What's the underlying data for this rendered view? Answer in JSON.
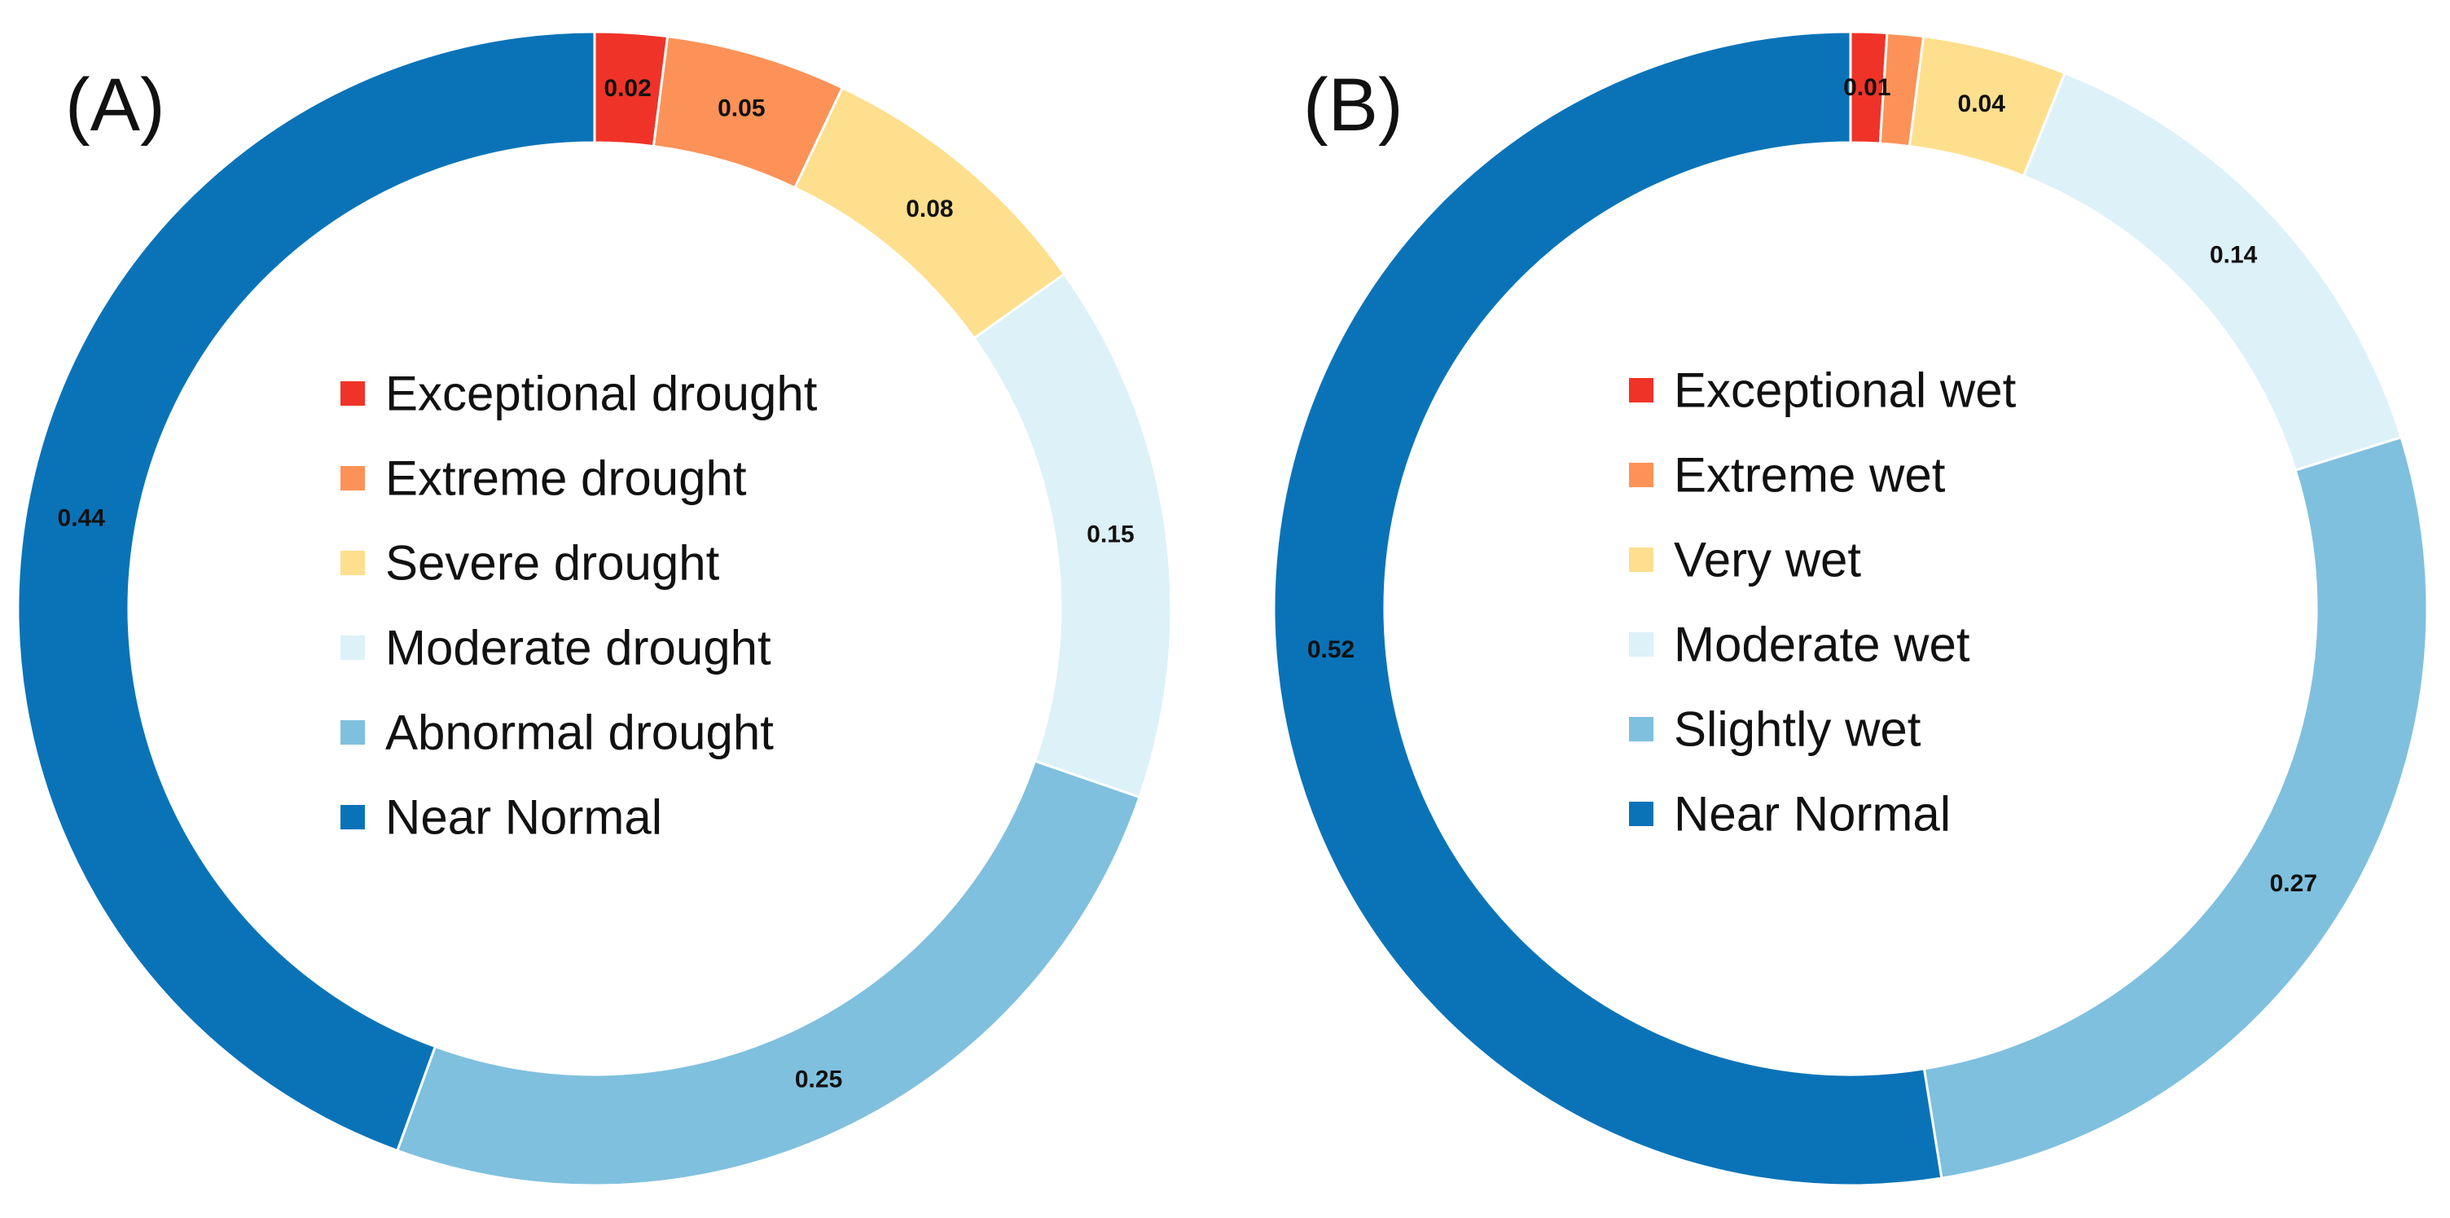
{
  "chart_data": [
    {
      "type": "pie",
      "panel_label": "(A)",
      "title": "",
      "categories": [
        "Exceptional drought",
        "Extreme drought",
        "Severe drought",
        "Moderate drought",
        "Abnormal drought",
        "Near Normal"
      ],
      "values": [
        0.02,
        0.05,
        0.08,
        0.15,
        0.25,
        0.44
      ],
      "data_labels": [
        "0.02",
        "0.05",
        "0.08",
        "0.15",
        "0.25",
        "0.44"
      ],
      "colors": [
        "#f03328",
        "#fc9257",
        "#fedf8d",
        "#ddf1f8",
        "#7fc0de",
        "#0a73b8"
      ],
      "legend": [
        "Exceptional drought",
        "Extreme drought",
        "Severe drought",
        "Moderate drought",
        "Abnormal drought",
        "Near Normal"
      ],
      "legend_position": "center"
    },
    {
      "type": "pie",
      "panel_label": "(B)",
      "title": "",
      "categories": [
        "Exceptional wet",
        "Extreme wet",
        "Very wet",
        "Moderate wet",
        "Slightly wet",
        "Near Normal"
      ],
      "values": [
        0.01,
        0.01,
        0.04,
        0.14,
        0.27,
        0.52
      ],
      "data_labels": [
        "0.01",
        "",
        "0.04",
        "0.14",
        "0.27",
        "0.52"
      ],
      "colors": [
        "#f03328",
        "#fc9257",
        "#fedf8d",
        "#ddf1f8",
        "#7fc0de",
        "#0a73b8"
      ],
      "legend": [
        "Exceptional wet",
        "Extreme wet",
        "Very wet",
        "Moderate wet",
        "Slightly wet",
        "Near Normal"
      ],
      "legend_position": "center"
    }
  ]
}
